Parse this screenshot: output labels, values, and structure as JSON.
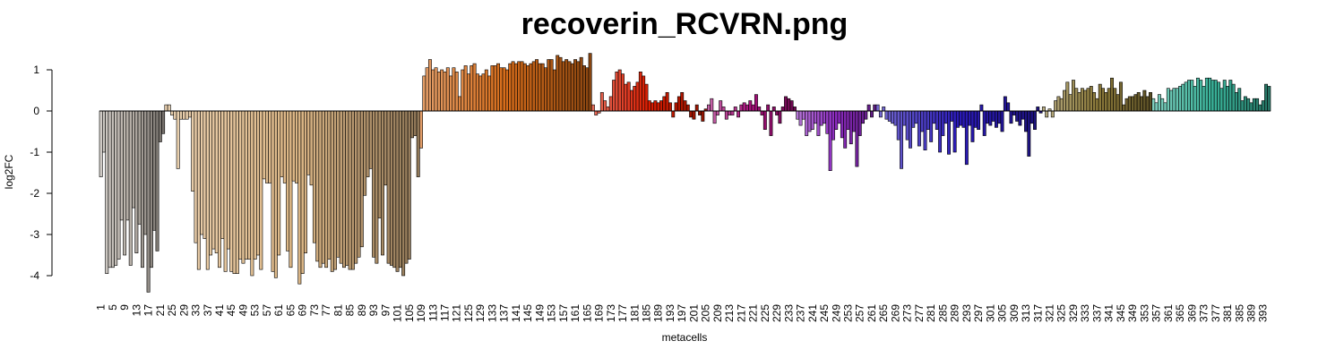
{
  "chart_data": {
    "type": "bar",
    "title": "recoverin_RCVRN.png",
    "xlabel": "metacells",
    "ylabel": "log2FC",
    "ylim": [
      -4.4,
      1.45
    ],
    "yticks": [
      1,
      0,
      -1,
      -2,
      -3,
      -4
    ],
    "grid": false,
    "legend": "none",
    "n_bars": 395,
    "xtick_labels": [
      1,
      5,
      9,
      13,
      17,
      21,
      25,
      29,
      33,
      37,
      41,
      45,
      49,
      53,
      57,
      61,
      65,
      69,
      73,
      77,
      81,
      85,
      89,
      93,
      97,
      101,
      105,
      109,
      113,
      117,
      121,
      125,
      129,
      133,
      137,
      141,
      145,
      149,
      153,
      157,
      161,
      165,
      169,
      173,
      177,
      181,
      185,
      189,
      193,
      197,
      201,
      205,
      209,
      213,
      217,
      221,
      225,
      229,
      233,
      237,
      241,
      245,
      249,
      253,
      257,
      261,
      265,
      269,
      273,
      277,
      281,
      285,
      289,
      293,
      297,
      301,
      305,
      309,
      313,
      317,
      321,
      325,
      329,
      333,
      337,
      341,
      345,
      349,
      353,
      357,
      361,
      365,
      369,
      373,
      377,
      381,
      385,
      389,
      393
    ],
    "groups": [
      {
        "start": 1,
        "end": 22,
        "color": "#b5aea6",
        "values": [
          -1.6,
          -1.0,
          -3.95,
          -3.8,
          -3.8,
          -3.75,
          -3.6,
          -2.65,
          -3.5,
          -2.65,
          -3.75,
          -2.35,
          -3.45,
          -2.75,
          -3.8,
          -3.0,
          -4.4,
          -3.8,
          -2.9,
          -3.4,
          -0.75,
          -0.55
        ]
      },
      {
        "start": 23,
        "end": 108,
        "color": "#deb887",
        "values": [
          0.15,
          0.15,
          -0.1,
          -0.2,
          -1.4,
          -0.2,
          -0.2,
          -0.2,
          -0.15,
          -1.95,
          -3.2,
          -3.85,
          -3.0,
          -3.1,
          -3.85,
          -3.5,
          -3.35,
          -3.45,
          -3.8,
          -3.1,
          -3.9,
          -3.35,
          -3.9,
          -3.95,
          -3.95,
          -3.6,
          -3.7,
          -3.6,
          -3.6,
          -4.0,
          -3.6,
          -3.5,
          -3.85,
          -1.65,
          -1.75,
          -1.75,
          -3.9,
          -4.05,
          -3.5,
          -1.6,
          -1.75,
          -3.4,
          -3.8,
          -1.7,
          -1.75,
          -4.2,
          -3.95,
          -3.45,
          -1.55,
          -1.8,
          -3.2,
          -3.65,
          -3.8,
          -3.7,
          -3.8,
          -3.6,
          -3.9,
          -3.85,
          -3.55,
          -3.7,
          -3.8,
          -3.75,
          -3.85,
          -3.85,
          -3.7,
          -3.55,
          -3.3,
          -2.05,
          -1.6,
          -1.4,
          -3.55,
          -3.7,
          -2.6,
          -3.5,
          -1.8,
          -3.7,
          -3.75,
          -3.8,
          -3.9,
          -3.8,
          -4.0,
          -3.7,
          -3.6,
          -0.65,
          -0.6,
          -1.6
        ]
      },
      {
        "start": 109,
        "end": 166,
        "color": "#d66c1a",
        "values": [
          -0.9,
          0.85,
          1.05,
          1.25,
          1.0,
          1.05,
          0.95,
          1.0,
          0.95,
          1.05,
          0.85,
          1.05,
          0.95,
          0.35,
          1.0,
          1.1,
          0.9,
          1.1,
          1.15,
          0.9,
          0.85,
          0.9,
          1.0,
          0.85,
          1.1,
          1.1,
          1.15,
          1.05,
          1.05,
          1.0,
          1.15,
          1.2,
          1.15,
          1.2,
          1.2,
          1.15,
          1.1,
          1.15,
          1.2,
          1.25,
          1.15,
          1.15,
          1.05,
          1.25,
          1.25,
          1.0,
          1.35,
          1.3,
          1.2,
          1.25,
          1.2,
          1.15,
          1.25,
          1.2,
          1.3,
          1.1,
          1.05,
          1.4
        ]
      },
      {
        "start": 167,
        "end": 205,
        "color": "#d91c00",
        "values": [
          0.15,
          -0.1,
          -0.05,
          0.45,
          0.25,
          0.1,
          0.35,
          0.75,
          0.95,
          1.0,
          0.9,
          0.65,
          0.7,
          0.5,
          0.6,
          0.7,
          0.95,
          0.85,
          0.65,
          0.25,
          0.2,
          0.25,
          0.2,
          0.25,
          0.35,
          0.45,
          0.2,
          -0.15,
          0.2,
          0.35,
          0.45,
          0.25,
          0.15,
          -0.15,
          -0.2,
          0.15,
          -0.1,
          -0.25,
          0.05
        ]
      },
      {
        "start": 206,
        "end": 235,
        "color": "#a6107a",
        "values": [
          0.15,
          0.3,
          -0.3,
          -0.1,
          0.25,
          0.1,
          -0.2,
          -0.1,
          -0.1,
          0.1,
          -0.15,
          0.15,
          0.2,
          0.15,
          0.25,
          0.15,
          0.4,
          0.1,
          -0.1,
          -0.45,
          0.15,
          -0.6,
          0.1,
          -0.1,
          -0.3,
          0.1,
          0.35,
          0.3,
          0.25,
          0.1
        ]
      },
      {
        "start": 236,
        "end": 262,
        "color": "#8c2ac0",
        "values": [
          -0.2,
          -0.35,
          -0.2,
          -0.6,
          -0.5,
          -0.45,
          -0.3,
          -0.6,
          -0.35,
          -0.3,
          -0.55,
          -1.45,
          -0.7,
          -0.45,
          -0.3,
          -0.65,
          -0.9,
          -0.45,
          -0.8,
          -0.5,
          -1.35,
          -0.6,
          -0.3,
          -0.2,
          0.15,
          -0.15,
          0.15
        ]
      },
      {
        "start": 263,
        "end": 318,
        "color": "#2a1ab8",
        "values": [
          0.15,
          -0.15,
          0.1,
          -0.2,
          -0.25,
          -0.3,
          -0.35,
          -0.7,
          -1.4,
          -0.35,
          -0.7,
          -0.9,
          -0.4,
          -0.3,
          -0.85,
          -0.5,
          -0.95,
          -0.45,
          -0.75,
          -0.3,
          -0.45,
          -1.0,
          -0.6,
          -0.3,
          -1.05,
          -0.25,
          -1.0,
          -0.4,
          -0.35,
          -0.4,
          -1.3,
          -0.35,
          -0.75,
          -0.4,
          -0.45,
          0.15,
          -0.6,
          -0.3,
          -0.35,
          -0.25,
          -0.4,
          -0.3,
          -0.5,
          0.35,
          0.2,
          -0.3,
          -0.1,
          -0.25,
          -0.35,
          -0.2,
          -0.5,
          -1.1,
          -0.3,
          -0.45,
          0.1,
          -0.05
        ]
      },
      {
        "start": 319,
        "end": 355,
        "color": "#8c7a3a",
        "values": [
          0.1,
          -0.15,
          0.05,
          -0.15,
          0.25,
          0.35,
          0.3,
          0.5,
          0.7,
          0.4,
          0.75,
          0.55,
          0.45,
          0.55,
          0.5,
          0.55,
          0.6,
          0.45,
          0.3,
          0.65,
          0.55,
          0.45,
          0.55,
          0.8,
          0.55,
          0.4,
          0.7,
          0.15,
          0.3,
          0.35,
          0.35,
          0.4,
          0.45,
          0.35,
          0.5,
          0.35,
          0.45
        ]
      },
      {
        "start": 356,
        "end": 395,
        "color": "#3ab39a",
        "values": [
          0.3,
          0.2,
          0.4,
          0.3,
          0.2,
          0.55,
          0.5,
          0.55,
          0.55,
          0.6,
          0.65,
          0.7,
          0.75,
          0.75,
          0.6,
          0.8,
          0.75,
          0.6,
          0.8,
          0.8,
          0.75,
          0.75,
          0.7,
          0.55,
          0.75,
          0.6,
          0.75,
          0.65,
          0.45,
          0.55,
          0.25,
          0.35,
          0.3,
          0.2,
          0.3,
          0.3,
          0.15,
          0.25,
          0.65,
          0.6
        ]
      }
    ]
  }
}
